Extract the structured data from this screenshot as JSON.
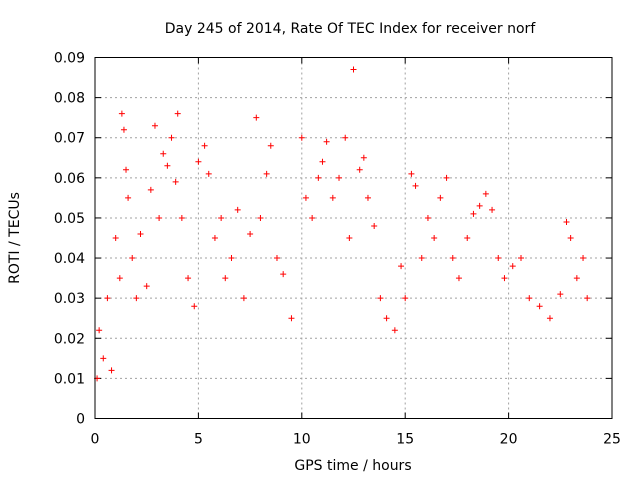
{
  "chart_data": {
    "type": "scatter",
    "title": "Day 245 of 2014, Rate Of TEC Index for receiver norf",
    "xlabel": "GPS time / hours",
    "ylabel": "ROTI / TECUs",
    "xlim": [
      0,
      25
    ],
    "ylim": [
      0,
      0.09
    ],
    "x_ticks": [
      0,
      5,
      10,
      15,
      20,
      25
    ],
    "x_tick_labels": [
      "0",
      "5",
      "10",
      "15",
      "20",
      "25"
    ],
    "y_ticks": [
      0,
      0.01,
      0.02,
      0.03,
      0.04,
      0.05,
      0.06,
      0.07,
      0.08,
      0.09
    ],
    "y_tick_labels": [
      "0",
      "0.01",
      "0.02",
      "0.03",
      "0.04",
      "0.05",
      "0.06",
      "0.07",
      "0.08",
      "0.09"
    ],
    "grid": true,
    "marker": "+",
    "color": "#ff0000",
    "series": [
      {
        "name": "ROTI",
        "points": [
          [
            0.1,
            0.01
          ],
          [
            0.2,
            0.022
          ],
          [
            0.4,
            0.015
          ],
          [
            0.6,
            0.03
          ],
          [
            0.8,
            0.012
          ],
          [
            1.0,
            0.045
          ],
          [
            1.2,
            0.035
          ],
          [
            1.3,
            0.076
          ],
          [
            1.4,
            0.072
          ],
          [
            1.5,
            0.062
          ],
          [
            1.6,
            0.055
          ],
          [
            1.8,
            0.04
          ],
          [
            2.0,
            0.03
          ],
          [
            2.2,
            0.046
          ],
          [
            2.5,
            0.033
          ],
          [
            2.7,
            0.057
          ],
          [
            2.9,
            0.073
          ],
          [
            3.1,
            0.05
          ],
          [
            3.3,
            0.066
          ],
          [
            3.5,
            0.063
          ],
          [
            3.7,
            0.07
          ],
          [
            3.9,
            0.059
          ],
          [
            4.0,
            0.076
          ],
          [
            4.2,
            0.05
          ],
          [
            4.5,
            0.035
          ],
          [
            4.8,
            0.028
          ],
          [
            5.0,
            0.064
          ],
          [
            5.3,
            0.068
          ],
          [
            5.5,
            0.061
          ],
          [
            5.8,
            0.045
          ],
          [
            6.1,
            0.05
          ],
          [
            6.3,
            0.035
          ],
          [
            6.6,
            0.04
          ],
          [
            6.9,
            0.052
          ],
          [
            7.2,
            0.03
          ],
          [
            7.5,
            0.046
          ],
          [
            7.8,
            0.075
          ],
          [
            8.0,
            0.05
          ],
          [
            8.3,
            0.061
          ],
          [
            8.5,
            0.068
          ],
          [
            8.8,
            0.04
          ],
          [
            9.1,
            0.036
          ],
          [
            9.5,
            0.025
          ],
          [
            10.0,
            0.07
          ],
          [
            10.2,
            0.055
          ],
          [
            10.5,
            0.05
          ],
          [
            10.8,
            0.06
          ],
          [
            11.0,
            0.064
          ],
          [
            11.2,
            0.069
          ],
          [
            11.5,
            0.055
          ],
          [
            11.8,
            0.06
          ],
          [
            12.1,
            0.07
          ],
          [
            12.3,
            0.045
          ],
          [
            12.5,
            0.087
          ],
          [
            12.8,
            0.062
          ],
          [
            13.0,
            0.065
          ],
          [
            13.2,
            0.055
          ],
          [
            13.5,
            0.048
          ],
          [
            13.8,
            0.03
          ],
          [
            14.1,
            0.025
          ],
          [
            14.5,
            0.022
          ],
          [
            14.8,
            0.038
          ],
          [
            15.0,
            0.03
          ],
          [
            15.3,
            0.061
          ],
          [
            15.5,
            0.058
          ],
          [
            15.8,
            0.04
          ],
          [
            16.1,
            0.05
          ],
          [
            16.4,
            0.045
          ],
          [
            16.7,
            0.055
          ],
          [
            17.0,
            0.06
          ],
          [
            17.3,
            0.04
          ],
          [
            17.6,
            0.035
          ],
          [
            18.0,
            0.045
          ],
          [
            18.3,
            0.051
          ],
          [
            18.6,
            0.053
          ],
          [
            18.9,
            0.056
          ],
          [
            19.2,
            0.052
          ],
          [
            19.5,
            0.04
          ],
          [
            19.8,
            0.035
          ],
          [
            20.2,
            0.038
          ],
          [
            20.6,
            0.04
          ],
          [
            21.0,
            0.03
          ],
          [
            21.5,
            0.028
          ],
          [
            22.0,
            0.025
          ],
          [
            22.5,
            0.031
          ],
          [
            22.8,
            0.049
          ],
          [
            23.0,
            0.045
          ],
          [
            23.3,
            0.035
          ],
          [
            23.6,
            0.04
          ],
          [
            23.8,
            0.03
          ]
        ]
      }
    ]
  }
}
